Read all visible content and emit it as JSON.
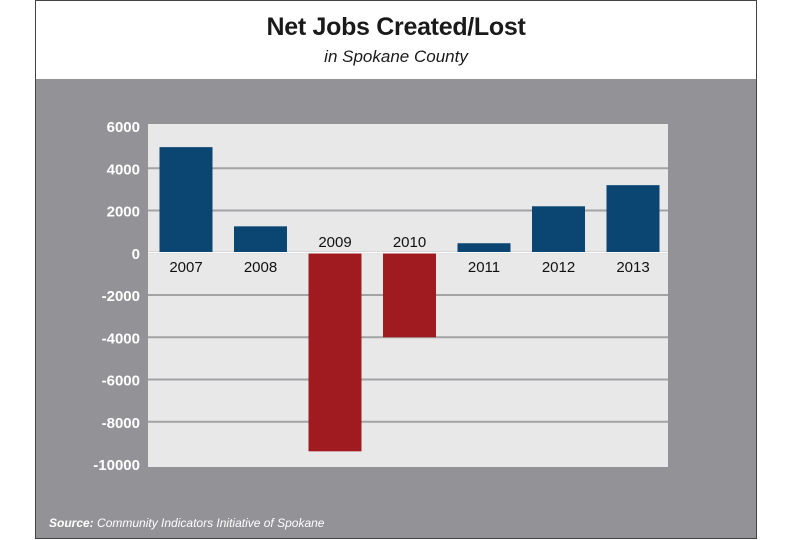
{
  "chart_data": {
    "type": "bar",
    "title": "Net Jobs Created/Lost",
    "subtitle": "in Spokane County",
    "categories": [
      "2007",
      "2008",
      "2009",
      "2010",
      "2011",
      "2012",
      "2013"
    ],
    "values": [
      5000,
      1250,
      -9400,
      -4000,
      450,
      2200,
      3200
    ],
    "yticks": [
      6000,
      4000,
      2000,
      0,
      -2000,
      -4000,
      -6000,
      -8000,
      -10000
    ],
    "ylim": [
      -10000,
      6000
    ],
    "xlabel": "",
    "ylabel": "",
    "grid": true,
    "colors": {
      "positive": "#0b4572",
      "negative": "#a01b20",
      "plot_bg": "#e8e8e9",
      "panel_bg": "#939296",
      "grid": "#a3a3a6"
    },
    "source_label": "Source:",
    "source_text": "Community Indicators Initiative of Spokane"
  }
}
